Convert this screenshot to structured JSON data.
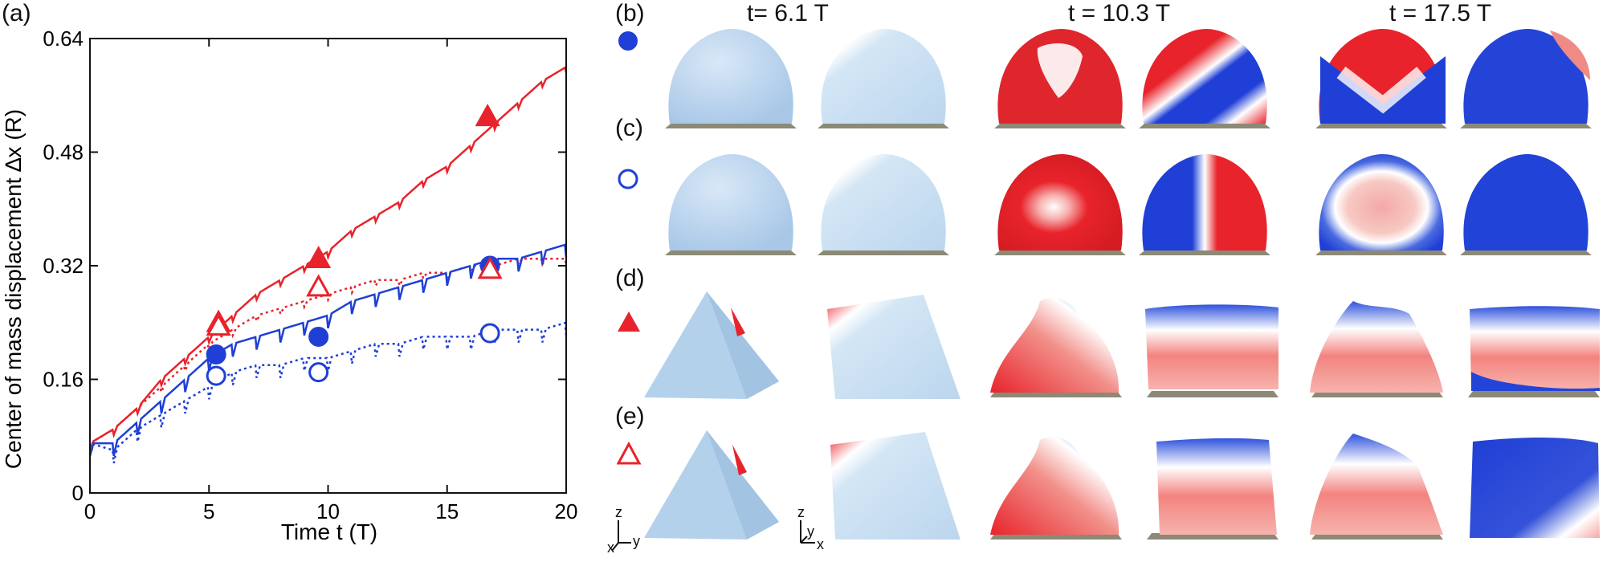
{
  "panels": {
    "a": "(a)",
    "b": "(b)",
    "c": "(c)",
    "d": "(d)",
    "e": "(e)"
  },
  "time_headers": [
    "t= 6.1 T",
    "t = 10.3 T",
    "t = 17.5 T"
  ],
  "axes_glyphs": {
    "left": {
      "z": "z",
      "x": "x",
      "y": "y"
    },
    "right": {
      "z": "z",
      "y": "y",
      "x": "x"
    }
  },
  "colors": {
    "red": "#e8232b",
    "blue": "#1f3fd6",
    "light_blue": "#b7d3ee",
    "floor": "#8c8a76"
  },
  "markers": {
    "b": "filled-blue-circle",
    "c": "open-blue-circle",
    "d": "filled-red-triangle",
    "e": "open-red-triangle"
  },
  "chart_data": {
    "type": "line",
    "xlabel": "Time t (T)",
    "ylabel": "Center of mass displacement ∆x (R)",
    "xlim": [
      0,
      20
    ],
    "ylim": [
      0,
      0.64
    ],
    "xticks": [
      "0",
      "5",
      "10",
      "15",
      "20"
    ],
    "yticks": [
      "0",
      "0.16",
      "0.32",
      "0.48",
      "0.64"
    ],
    "series": [
      {
        "style": "solid-red",
        "x": [
          0,
          1,
          2,
          3,
          4,
          5,
          6,
          7,
          8,
          9,
          10,
          11,
          12,
          13,
          14,
          15,
          16,
          17,
          18,
          19,
          20
        ],
        "values": [
          0.07,
          0.09,
          0.12,
          0.16,
          0.19,
          0.22,
          0.25,
          0.28,
          0.3,
          0.32,
          0.34,
          0.37,
          0.39,
          0.41,
          0.44,
          0.46,
          0.49,
          0.52,
          0.55,
          0.58,
          0.6
        ]
      },
      {
        "style": "dotted-red",
        "x": [
          0,
          1,
          2,
          3,
          4,
          5,
          6,
          7,
          8,
          9,
          10,
          11,
          12,
          13,
          14,
          15,
          16,
          17,
          18,
          19,
          20
        ],
        "values": [
          0.07,
          0.09,
          0.12,
          0.15,
          0.18,
          0.21,
          0.23,
          0.25,
          0.26,
          0.27,
          0.28,
          0.29,
          0.3,
          0.3,
          0.31,
          0.31,
          0.32,
          0.32,
          0.33,
          0.33,
          0.33
        ]
      },
      {
        "style": "solid-blue",
        "x": [
          0,
          1,
          2,
          3,
          4,
          5,
          6,
          7,
          8,
          9,
          10,
          11,
          12,
          13,
          14,
          15,
          16,
          17,
          18,
          19,
          20
        ],
        "values": [
          0.07,
          0.07,
          0.1,
          0.13,
          0.16,
          0.19,
          0.21,
          0.22,
          0.23,
          0.24,
          0.25,
          0.27,
          0.28,
          0.29,
          0.3,
          0.31,
          0.32,
          0.33,
          0.33,
          0.34,
          0.35
        ]
      },
      {
        "style": "dotted-blue",
        "x": [
          0,
          1,
          2,
          3,
          4,
          5,
          6,
          7,
          8,
          9,
          10,
          11,
          12,
          13,
          14,
          15,
          16,
          17,
          18,
          19,
          20
        ],
        "values": [
          0.07,
          0.06,
          0.09,
          0.11,
          0.13,
          0.15,
          0.17,
          0.18,
          0.18,
          0.19,
          0.19,
          0.2,
          0.21,
          0.21,
          0.22,
          0.22,
          0.22,
          0.23,
          0.23,
          0.23,
          0.24
        ]
      }
    ],
    "points": [
      {
        "marker": "filled-blue-circle",
        "x": 5.3,
        "y": 0.195
      },
      {
        "marker": "filled-blue-circle",
        "x": 9.6,
        "y": 0.22
      },
      {
        "marker": "filled-blue-circle",
        "x": 16.8,
        "y": 0.32
      },
      {
        "marker": "open-blue-circle",
        "x": 5.3,
        "y": 0.165
      },
      {
        "marker": "open-blue-circle",
        "x": 9.6,
        "y": 0.17
      },
      {
        "marker": "open-blue-circle",
        "x": 16.8,
        "y": 0.225
      },
      {
        "marker": "filled-red-triangle",
        "x": 5.4,
        "y": 0.24
      },
      {
        "marker": "filled-red-triangle",
        "x": 9.6,
        "y": 0.33
      },
      {
        "marker": "filled-red-triangle",
        "x": 16.7,
        "y": 0.53
      },
      {
        "marker": "open-red-triangle",
        "x": 5.4,
        "y": 0.235
      },
      {
        "marker": "open-red-triangle",
        "x": 9.6,
        "y": 0.29
      },
      {
        "marker": "open-red-triangle",
        "x": 16.8,
        "y": 0.315
      }
    ]
  }
}
